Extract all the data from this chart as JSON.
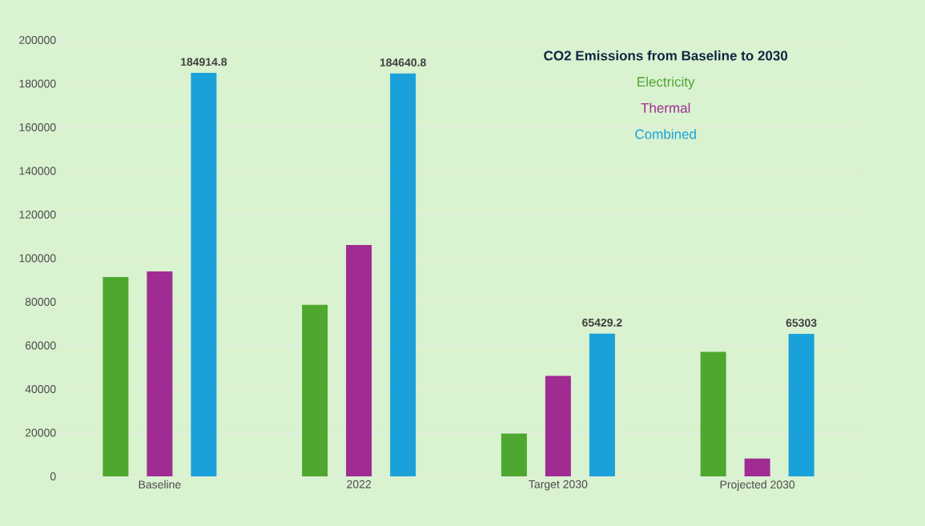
{
  "chart_data": {
    "type": "bar",
    "title": "CO2 Emissions from Baseline to 2030",
    "categories": [
      "Baseline",
      "2022",
      "Target 2030",
      "Projected 2030"
    ],
    "series": [
      {
        "name": "Electricity",
        "color": "#4ea72e",
        "values": [
          91400,
          78600,
          19600,
          57100
        ]
      },
      {
        "name": "Thermal",
        "color": "#a02b93",
        "values": [
          93900,
          106100,
          46100,
          8200
        ]
      },
      {
        "name": "Combined",
        "color": "#1ba1d9",
        "values": [
          184914.8,
          184640.8,
          65429.2,
          65303
        ],
        "value_labels": [
          "184914.8",
          "184640.8",
          "65429.2",
          "65303"
        ]
      }
    ],
    "ylim": [
      0,
      200000
    ],
    "yticks": [
      0,
      20000,
      40000,
      60000,
      80000,
      100000,
      120000,
      140000,
      160000,
      180000,
      200000
    ],
    "grid": "y",
    "legend": "top right"
  }
}
